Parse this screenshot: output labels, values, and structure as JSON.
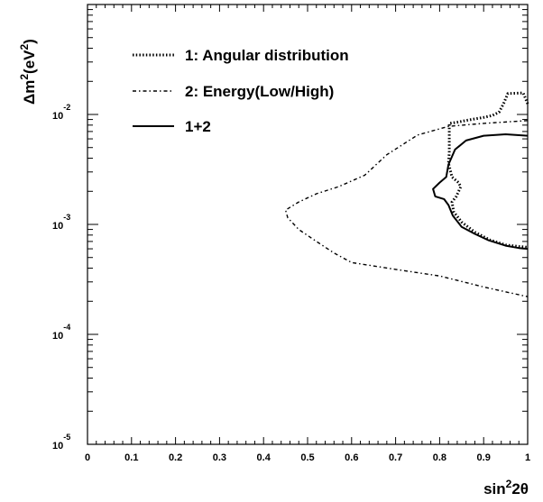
{
  "chart_data": {
    "type": "line",
    "xlabel": {
      "base": "sin",
      "sup": "2",
      "rest": "2θ"
    },
    "ylabel": {
      "pre": "Δm",
      "sup1": "2",
      "mid": "(eV",
      "sup2": "2",
      "post": ")"
    },
    "xlim": [
      0,
      1
    ],
    "ylim": [
      1e-05,
      0.1
    ],
    "yscale": "log",
    "grid": false,
    "legend_position": "top-left",
    "x_ticks": [
      {
        "value": 0,
        "label": "0"
      },
      {
        "value": 0.1,
        "label": "0.1"
      },
      {
        "value": 0.2,
        "label": "0.2"
      },
      {
        "value": 0.3,
        "label": "0.3"
      },
      {
        "value": 0.4,
        "label": "0.4"
      },
      {
        "value": 0.5,
        "label": "0.5"
      },
      {
        "value": 0.6,
        "label": "0.6"
      },
      {
        "value": 0.7,
        "label": "0.7"
      },
      {
        "value": 0.8,
        "label": "0.8"
      },
      {
        "value": 0.9,
        "label": "0.9"
      },
      {
        "value": 1,
        "label": "1"
      }
    ],
    "y_ticks": [
      {
        "value": 0.01,
        "base": "10",
        "exp": "-2"
      },
      {
        "value": 0.001,
        "base": "10",
        "exp": "-3"
      },
      {
        "value": 0.0001,
        "base": "10",
        "exp": "-4"
      },
      {
        "value": 1e-05,
        "base": "10",
        "exp": "-5"
      }
    ],
    "series": [
      {
        "name": "1: Angular distribution",
        "style": "dotted",
        "points": [
          [
            1.0,
            0.0125
          ],
          [
            0.99,
            0.0157
          ],
          [
            0.955,
            0.0155
          ],
          [
            0.945,
            0.0125
          ],
          [
            0.935,
            0.0105
          ],
          [
            0.92,
            0.0098
          ],
          [
            0.9,
            0.0094
          ],
          [
            0.865,
            0.0089
          ],
          [
            0.84,
            0.0085
          ],
          [
            0.822,
            0.0083
          ],
          [
            0.822,
            0.0063
          ],
          [
            0.822,
            0.0045
          ],
          [
            0.82,
            0.0036
          ],
          [
            0.828,
            0.0027
          ],
          [
            0.843,
            0.0024
          ],
          [
            0.848,
            0.0022
          ],
          [
            0.838,
            0.0018
          ],
          [
            0.828,
            0.0016
          ],
          [
            0.832,
            0.0013
          ],
          [
            0.85,
            0.00105
          ],
          [
            0.88,
            0.00085
          ],
          [
            0.915,
            0.00072
          ],
          [
            0.95,
            0.00065
          ],
          [
            0.98,
            0.00063
          ],
          [
            1.0,
            0.00062
          ]
        ]
      },
      {
        "name": "2: Energy(Low/High)",
        "style": "dashdot",
        "points": [
          [
            1.0,
            0.0088
          ],
          [
            0.9,
            0.0083
          ],
          [
            0.82,
            0.0078
          ],
          [
            0.75,
            0.0065
          ],
          [
            0.68,
            0.0043
          ],
          [
            0.63,
            0.0028
          ],
          [
            0.57,
            0.0022
          ],
          [
            0.52,
            0.0019
          ],
          [
            0.48,
            0.0016
          ],
          [
            0.45,
            0.00135
          ],
          [
            0.455,
            0.00115
          ],
          [
            0.48,
            0.0009
          ],
          [
            0.52,
            0.0007
          ],
          [
            0.56,
            0.00055
          ],
          [
            0.6,
            0.00045
          ],
          [
            0.7,
            0.00039
          ],
          [
            0.8,
            0.00034
          ],
          [
            0.9,
            0.00027
          ],
          [
            1.0,
            0.00022
          ]
        ]
      },
      {
        "name": "1+2",
        "style": "solid",
        "points": [
          [
            1.0,
            0.0064
          ],
          [
            0.95,
            0.0066
          ],
          [
            0.9,
            0.0064
          ],
          [
            0.86,
            0.0058
          ],
          [
            0.835,
            0.0048
          ],
          [
            0.82,
            0.0035
          ],
          [
            0.815,
            0.0027
          ],
          [
            0.8,
            0.0024
          ],
          [
            0.785,
            0.0021
          ],
          [
            0.79,
            0.0018
          ],
          [
            0.81,
            0.0017
          ],
          [
            0.82,
            0.0015
          ],
          [
            0.83,
            0.0012
          ],
          [
            0.85,
            0.00095
          ],
          [
            0.88,
            0.00082
          ],
          [
            0.91,
            0.00072
          ],
          [
            0.95,
            0.00064
          ],
          [
            0.98,
            0.00061
          ],
          [
            1.0,
            0.0006
          ]
        ]
      }
    ]
  }
}
